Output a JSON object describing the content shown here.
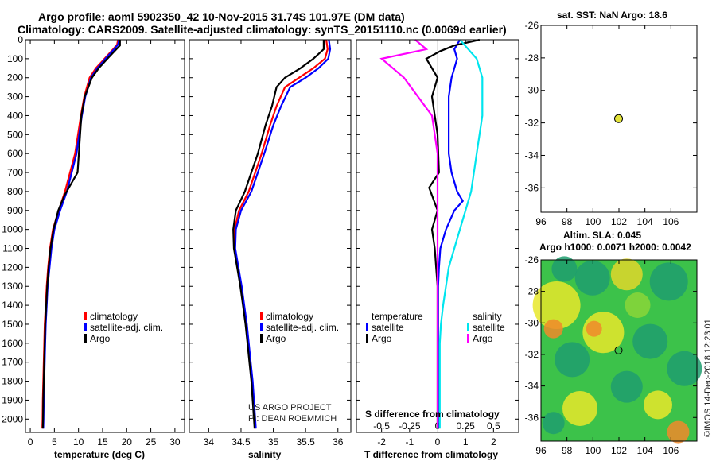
{
  "title": {
    "line1": "Argo profile: aoml 5902350_42 10-Nov-2015 31.74S 101.97E (DM data)",
    "line2": "Climatology: CARS2009. Satellite-adjusted climatology: synTS_20151110.nc (0.0069d earlier)"
  },
  "colors": {
    "climatology": "#ff0000",
    "satellite": "#0000ff",
    "argo": "#000000",
    "sat_salinity": "#00e5ee",
    "argo_salinity": "#ff00ff"
  },
  "chart_data": [
    {
      "type": "line",
      "name": "temperature-panel",
      "xlabel": "temperature (deg C)",
      "ylabel": "",
      "xlim": [
        -1,
        32
      ],
      "ylim": [
        2070,
        0
      ],
      "inverted_y": true,
      "x_ticks": [
        "0",
        "5",
        "10",
        "15",
        "20",
        "25",
        "30"
      ],
      "y_ticks": [
        "0",
        "100",
        "200",
        "300",
        "400",
        "500",
        "600",
        "700",
        "800",
        "900",
        "1000",
        "1100",
        "1200",
        "1300",
        "1400",
        "1500",
        "1600",
        "1700",
        "1800",
        "1900",
        "2000"
      ],
      "legend": [
        "climatology",
        "satellite-adj. clim.",
        "Argo"
      ],
      "series": [
        {
          "name": "climatology",
          "color": "#ff0000",
          "x": [
            18.2,
            18.0,
            17.2,
            15.4,
            13.6,
            12.3,
            11.2,
            10.5,
            9.3,
            7.2,
            5.9,
            4.7,
            4.1,
            3.7,
            3.4,
            3.2,
            3.0,
            2.9,
            2.8,
            2.7,
            2.6,
            2.55,
            2.5
          ],
          "y": [
            0,
            25,
            50,
            100,
            150,
            200,
            300,
            400,
            600,
            800,
            900,
            1000,
            1100,
            1200,
            1300,
            1400,
            1500,
            1600,
            1700,
            1800,
            1900,
            2000,
            2050
          ]
        },
        {
          "name": "satellite-adj. clim.",
          "color": "#0000ff",
          "x": [
            18.4,
            18.2,
            17.4,
            15.6,
            13.9,
            12.6,
            11.4,
            10.7,
            9.6,
            7.6,
            6.2,
            5.0,
            4.4,
            4.0,
            3.6,
            3.4,
            3.2,
            3.1,
            3.0,
            2.9,
            2.8,
            2.75,
            2.7
          ],
          "y": [
            0,
            25,
            50,
            100,
            150,
            200,
            300,
            400,
            600,
            800,
            900,
            1000,
            1100,
            1200,
            1300,
            1400,
            1500,
            1600,
            1700,
            1800,
            1900,
            2000,
            2050
          ]
        },
        {
          "name": "Argo",
          "color": "#000000",
          "x": [
            18.6,
            18.6,
            17.5,
            16.0,
            14.2,
            12.8,
            11.3,
            10.6,
            9.8,
            7.1,
            5.8,
            4.8,
            4.2,
            3.8,
            3.5,
            3.3,
            3.1,
            3.0,
            2.9,
            2.8,
            2.7,
            2.65,
            2.6
          ],
          "y": [
            0,
            30,
            60,
            100,
            150,
            200,
            300,
            400,
            700,
            820,
            900,
            1000,
            1100,
            1200,
            1300,
            1400,
            1500,
            1600,
            1700,
            1800,
            1900,
            2000,
            2050
          ]
        }
      ]
    },
    {
      "type": "line",
      "name": "salinity-panel",
      "xlabel": "salinity",
      "xlim": [
        33.7,
        36.2
      ],
      "ylim": [
        2070,
        0
      ],
      "inverted_y": true,
      "x_ticks": [
        "34",
        "34.5",
        "35",
        "35.5",
        "36"
      ],
      "legend": [
        "climatology",
        "satellite-adj. clim.",
        "Argo"
      ],
      "annotation": [
        "US ARGO PROJECT",
        "PI: DEAN ROEMMICH"
      ],
      "series": [
        {
          "name": "climatology",
          "color": "#ff0000",
          "x": [
            35.82,
            35.84,
            35.8,
            35.62,
            35.4,
            35.18,
            35.05,
            34.95,
            34.82,
            34.62,
            34.47,
            34.4,
            34.4,
            34.45,
            34.5,
            34.54,
            34.58,
            34.61,
            34.64,
            34.67,
            34.69,
            34.71,
            34.72
          ],
          "y": [
            0,
            50,
            100,
            150,
            200,
            250,
            350,
            450,
            600,
            800,
            900,
            1000,
            1100,
            1200,
            1300,
            1400,
            1500,
            1600,
            1700,
            1800,
            1900,
            2000,
            2050
          ]
        },
        {
          "name": "satellite-adj. clim.",
          "color": "#0000ff",
          "x": [
            35.86,
            35.88,
            35.85,
            35.7,
            35.5,
            35.26,
            35.12,
            35.0,
            34.86,
            34.66,
            34.5,
            34.42,
            34.41,
            34.46,
            34.51,
            34.55,
            34.59,
            34.62,
            34.65,
            34.68,
            34.7,
            34.72,
            34.73
          ],
          "y": [
            0,
            50,
            100,
            150,
            200,
            250,
            350,
            450,
            600,
            800,
            900,
            1000,
            1100,
            1200,
            1300,
            1400,
            1500,
            1600,
            1700,
            1800,
            1900,
            2000,
            2050
          ]
        },
        {
          "name": "Argo",
          "color": "#000000",
          "x": [
            35.78,
            35.78,
            35.62,
            35.42,
            35.18,
            35.05,
            34.98,
            34.88,
            34.76,
            34.56,
            34.42,
            34.38,
            34.39,
            34.44,
            34.49,
            34.53,
            34.57,
            34.6,
            34.63,
            34.66,
            34.68,
            34.7,
            34.71
          ],
          "y": [
            0,
            50,
            100,
            150,
            200,
            250,
            350,
            450,
            600,
            800,
            900,
            1000,
            1100,
            1200,
            1300,
            1400,
            1500,
            1600,
            1700,
            1800,
            1900,
            2000,
            2050
          ]
        }
      ]
    },
    {
      "type": "line",
      "name": "difference-panel",
      "xlabel": "T difference from climatology",
      "xlabel_top": "S difference from climatology",
      "xlim": [
        -2.9,
        2.9
      ],
      "ylim": [
        2070,
        0
      ],
      "inverted_y": true,
      "x_ticks": [
        "-2",
        "-1",
        "0",
        "1",
        "2"
      ],
      "top_ticks": [
        "-0.5",
        "-0.25",
        "0",
        "0.25",
        "0.5"
      ],
      "legend_temperature_title": "temperature",
      "legend_salinity_title": "salinity",
      "legend_temperature": [
        "satellite",
        "Argo"
      ],
      "legend_salinity": [
        "satellite",
        "Argo"
      ],
      "series": [
        {
          "name": "T satellite",
          "color": "#0000ff",
          "x": [
            0.8,
            0.6,
            0.7,
            0.5,
            0.4,
            0.4,
            0.4,
            0.5,
            0.7,
            0.9,
            0.6,
            0.3,
            0.1,
            0.05,
            0.02,
            0.02,
            0.02,
            0.02,
            0.02,
            0.02,
            0.02
          ],
          "y": [
            0,
            50,
            100,
            200,
            300,
            500,
            600,
            700,
            800,
            850,
            900,
            1000,
            1100,
            1200,
            1300,
            1400,
            1500,
            1600,
            1800,
            2000,
            2050
          ]
        },
        {
          "name": "T Argo",
          "color": "#000000",
          "x": [
            1.5,
            0.6,
            0.1,
            -0.4,
            0.0,
            -0.2,
            0.0,
            0.05,
            -0.3,
            -0.2,
            0.0,
            -0.2,
            -0.1,
            -0.05,
            0.0,
            0.0,
            0.0,
            0.0,
            0.0,
            0.0
          ],
          "y": [
            0,
            30,
            60,
            100,
            200,
            300,
            500,
            700,
            780,
            820,
            900,
            1000,
            1100,
            1200,
            1300,
            1400,
            1500,
            1800,
            2000,
            2050
          ]
        },
        {
          "name": "S satellite",
          "color": "#00e5ee",
          "x": [
            0.2,
            0.35,
            0.4,
            0.4,
            0.35,
            0.3,
            0.2,
            0.1,
            0.05,
            0.03,
            0.02,
            0.02,
            0.02,
            0.02,
            0.02
          ],
          "y": [
            0,
            100,
            200,
            400,
            600,
            800,
            1000,
            1200,
            1400,
            1500,
            1600,
            1700,
            1800,
            1900,
            2050
          ]
        },
        {
          "name": "S Argo",
          "color": "#ff00ff",
          "x": [
            -0.2,
            -0.1,
            -0.5,
            -0.3,
            -0.05,
            0.0,
            0.0,
            0.0,
            0.0,
            0.0
          ],
          "y": [
            0,
            50,
            100,
            200,
            400,
            600,
            1000,
            1400,
            1800,
            2050
          ]
        }
      ]
    },
    {
      "type": "scatter",
      "name": "sst-map",
      "title": "sat. SST: NaN Argo: 18.6",
      "xlim": [
        96,
        108
      ],
      "ylim": [
        -37.5,
        -26
      ],
      "x_ticks": [
        "96",
        "98",
        "100",
        "102",
        "104",
        "106"
      ],
      "y_ticks": [
        "-26",
        "-28",
        "-30",
        "-32",
        "-34",
        "-36"
      ],
      "points": [
        {
          "x": 101.97,
          "y": -31.74
        }
      ]
    },
    {
      "type": "heatmap",
      "name": "sla-map",
      "title_line1": "Altim. SLA: 0.045",
      "title_line2": "Argo h1000: 0.0071 h2000: 0.0042",
      "xlim": [
        96,
        108
      ],
      "ylim": [
        -37.5,
        -26
      ],
      "x_ticks": [
        "96",
        "98",
        "100",
        "102",
        "104",
        "106"
      ],
      "y_ticks": [
        "-26",
        "-28",
        "-30",
        "-32",
        "-34",
        "-36"
      ],
      "points": [
        {
          "x": 101.97,
          "y": -31.74
        }
      ]
    }
  ],
  "credit": "©IMOS 14-Dec-2018 12:23:01"
}
